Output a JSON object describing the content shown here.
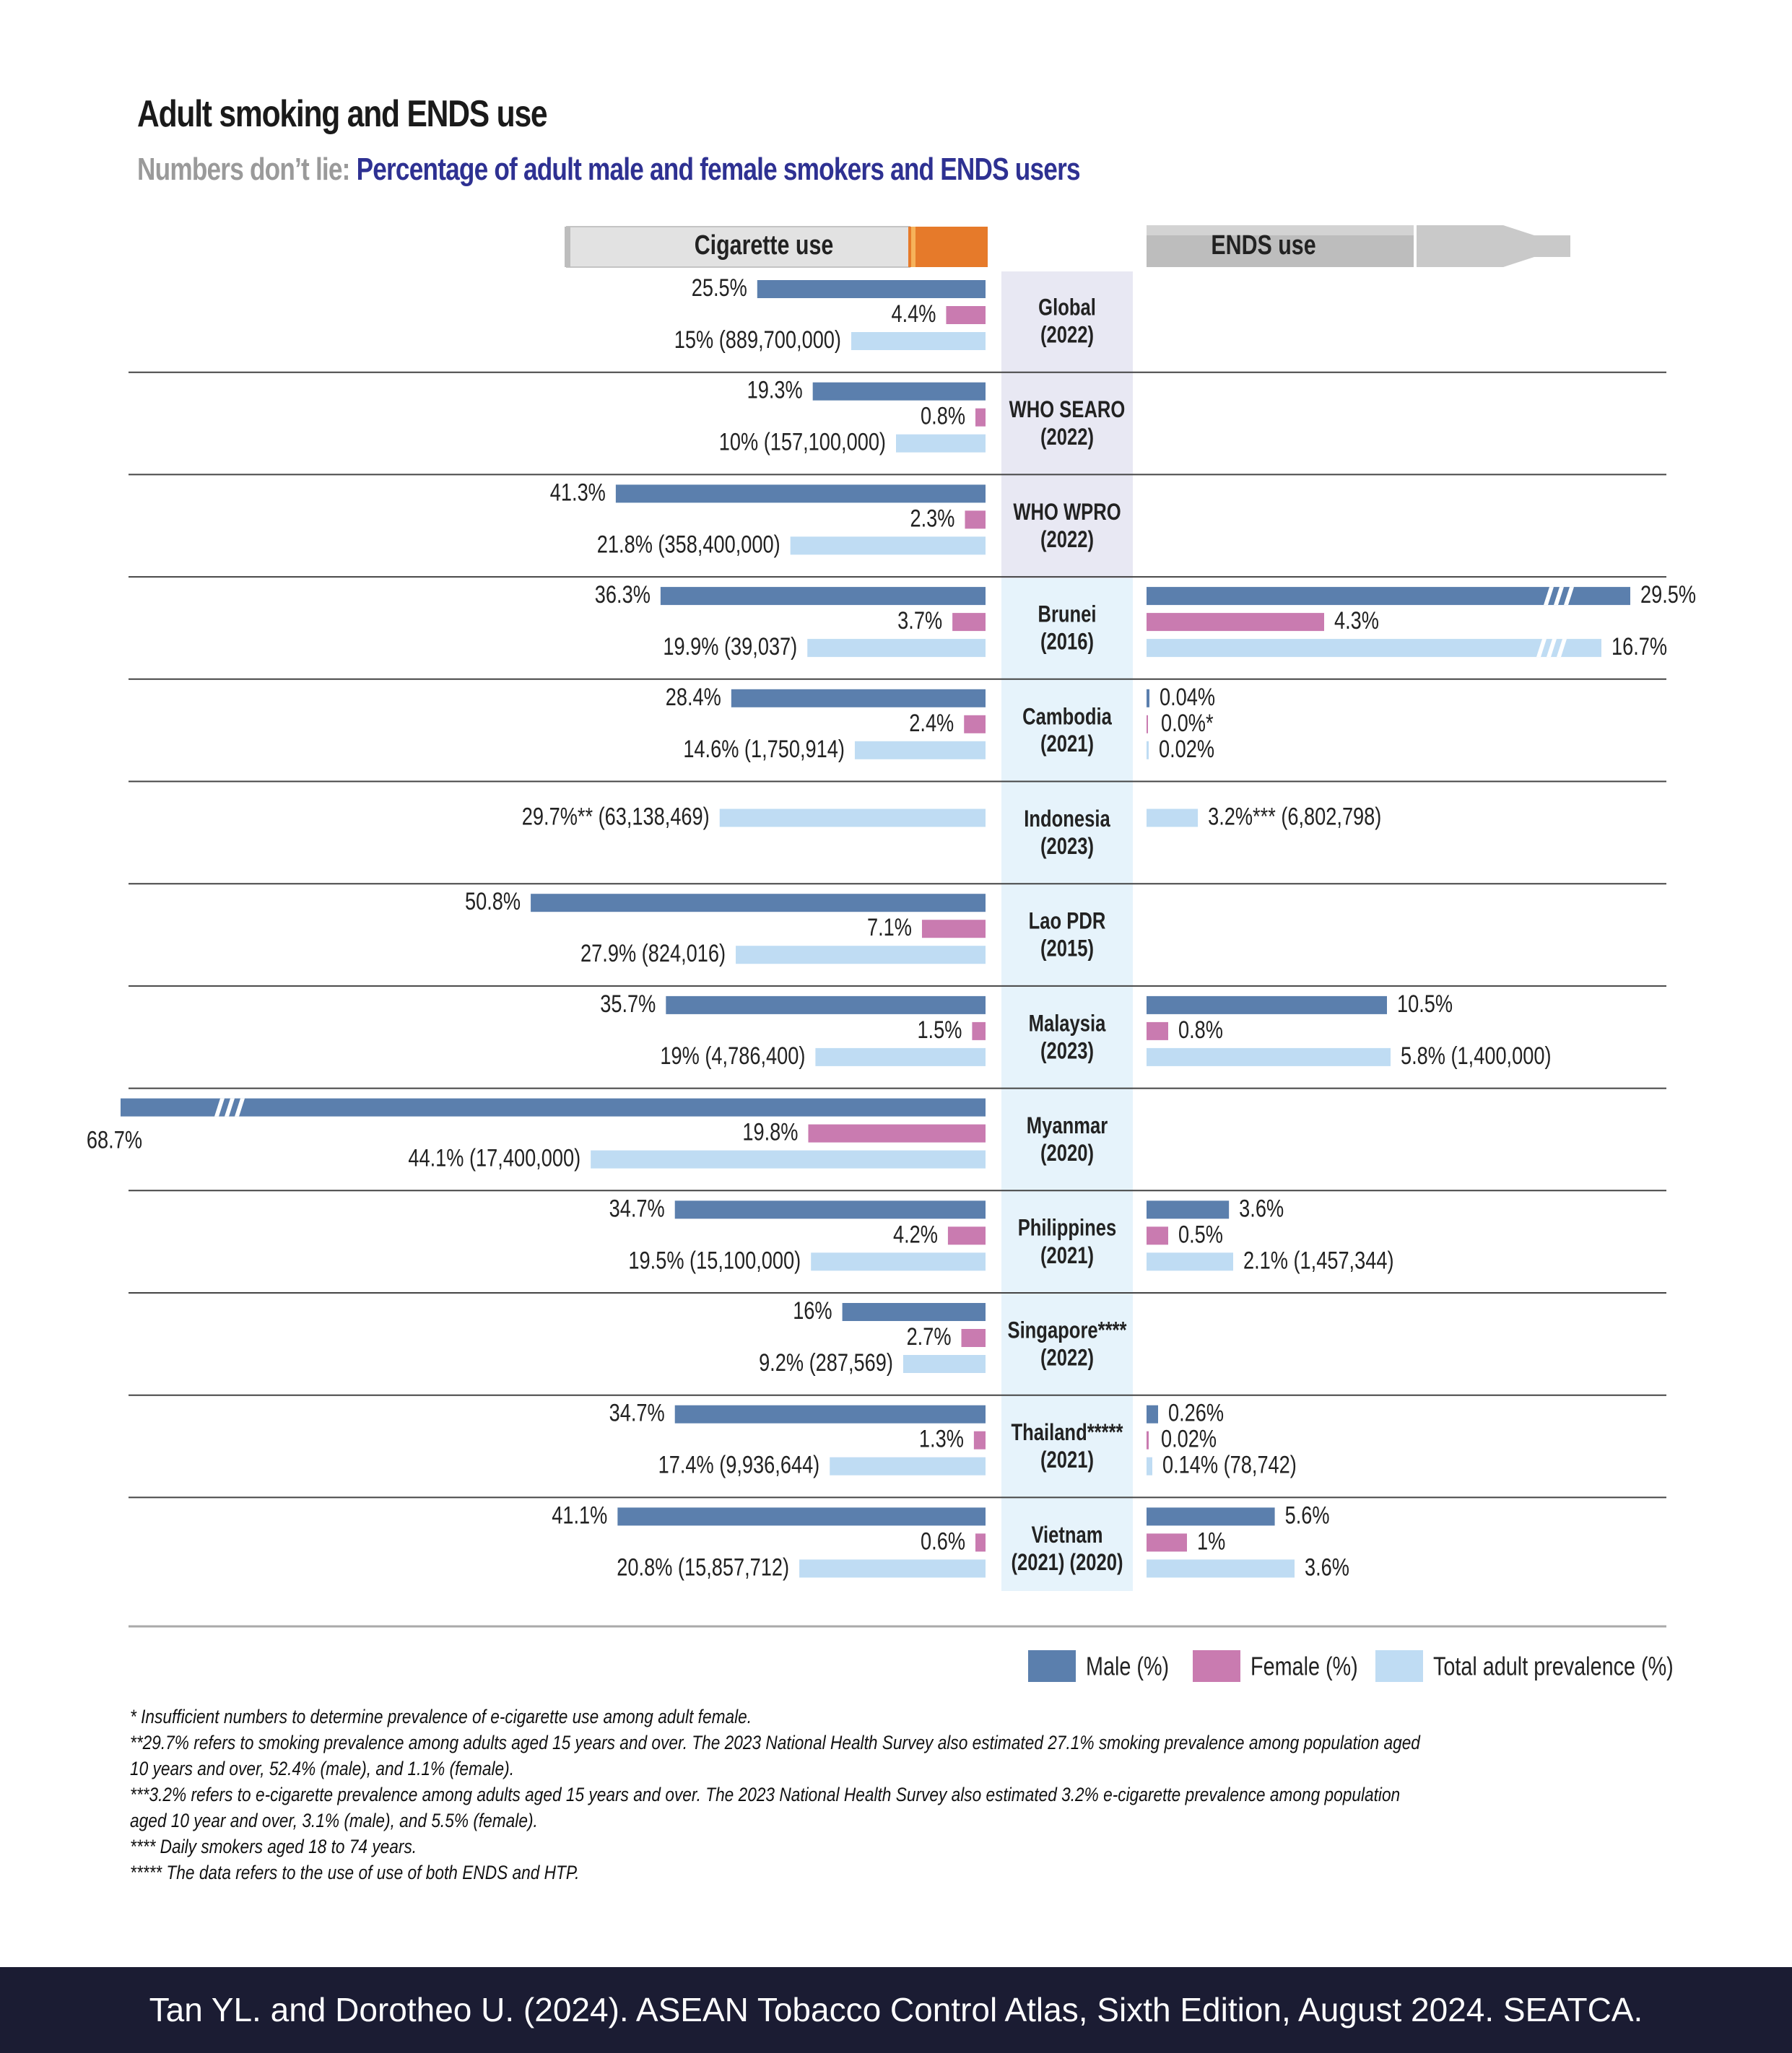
{
  "title": "Adult smoking and ENDS use",
  "subtitle": {
    "lead": "Numbers don’t lie:",
    "rest": " Percentage of adult male and female smokers and ENDS users"
  },
  "headers": {
    "cigarette": "Cigarette use",
    "ends": "ENDS use"
  },
  "legend": [
    {
      "label": "Male (%)",
      "color": "#5b7fad"
    },
    {
      "label": "Female (%)",
      "color": "#c97bb0"
    },
    {
      "label": "Total adult prevalence (%)",
      "color": "#bfdcf3"
    }
  ],
  "colors": {
    "male": "#5b7fad",
    "female": "#c97bb0",
    "total": "#bfdcf3",
    "region_band": "#e8e8f3",
    "country_band": "#e6f3fb"
  },
  "chart_data": {
    "type": "bar",
    "orientation": "horizontal-diverging",
    "left_panel": "Cigarette use",
    "right_panel": "ENDS use",
    "rows": [
      {
        "line1": "Global",
        "line2": "(2022)",
        "region": true,
        "cig": {
          "male": 25.5,
          "male_label": "25.5%",
          "female": 4.4,
          "female_label": "4.4%",
          "total": 15,
          "total_label": "15% (889,700,000)"
        },
        "ends": null
      },
      {
        "line1": "WHO SEARO",
        "line2": "(2022)",
        "region": true,
        "cig": {
          "male": 19.3,
          "male_label": "19.3%",
          "female": 0.8,
          "female_label": "0.8%",
          "total": 10,
          "total_label": "10% (157,100,000)"
        },
        "ends": null
      },
      {
        "line1": "WHO WPRO",
        "line2": "(2022)",
        "region": true,
        "cig": {
          "male": 41.3,
          "male_label": "41.3%",
          "female": 2.3,
          "female_label": "2.3%",
          "total": 21.8,
          "total_label": "21.8% (358,400,000)"
        },
        "ends": null
      },
      {
        "line1": "Brunei",
        "line2": "(2016)",
        "region": false,
        "cig": {
          "male": 36.3,
          "male_label": "36.3%",
          "female": 3.7,
          "female_label": "3.7%",
          "total": 19.9,
          "total_label": "19.9% (39,037)"
        },
        "ends": {
          "male": 29.5,
          "male_label": "29.5%",
          "male_break": true,
          "female": 4.3,
          "female_label": "4.3%",
          "total": 16.7,
          "total_label": "16.7%",
          "total_break": true
        }
      },
      {
        "line1": "Cambodia",
        "line2": "(2021)",
        "region": false,
        "cig": {
          "male": 28.4,
          "male_label": "28.4%",
          "female": 2.4,
          "female_label": "2.4%",
          "total": 14.6,
          "total_label": "14.6% (1,750,914)"
        },
        "ends": {
          "male": 0.04,
          "male_label": "0.04%",
          "female": 0,
          "female_label": "0.0%*",
          "total": 0.02,
          "total_label": "0.02%"
        }
      },
      {
        "line1": "Indonesia",
        "line2": "(2023)",
        "region": false,
        "cig": {
          "total": 29.7,
          "total_label": "29.7%** (63,138,469)"
        },
        "ends": {
          "total": 3.2,
          "total_label": "3.2%*** (6,802,798)"
        }
      },
      {
        "line1": "Lao PDR",
        "line2": "(2015)",
        "region": false,
        "cig": {
          "male": 50.8,
          "male_label": "50.8%",
          "female": 7.1,
          "female_label": "7.1%",
          "total": 27.9,
          "total_label": "27.9% (824,016)"
        },
        "ends": null
      },
      {
        "line1": "Malaysia",
        "line2": "(2023)",
        "region": false,
        "cig": {
          "male": 35.7,
          "male_label": "35.7%",
          "female": 1.5,
          "female_label": "1.5%",
          "total": 19,
          "total_label": "19% (4,786,400)"
        },
        "ends": {
          "male": 10.5,
          "male_label": "10.5%",
          "female": 0.8,
          "female_label": "0.8%",
          "total": 5.8,
          "total_label": "5.8% (1,400,000)"
        }
      },
      {
        "line1": "Myanmar",
        "line2": "(2020)",
        "region": false,
        "cig": {
          "male": 68.7,
          "male_label": "68.7%",
          "male_break": true,
          "female": 19.8,
          "female_label": "19.8%",
          "total": 44.1,
          "total_label": "44.1% (17,400,000)"
        },
        "ends": null
      },
      {
        "line1": "Philippines",
        "line2": "(2021)",
        "region": false,
        "cig": {
          "male": 34.7,
          "male_label": "34.7%",
          "female": 4.2,
          "female_label": "4.2%",
          "total": 19.5,
          "total_label": "19.5% (15,100,000)"
        },
        "ends": {
          "male": 3.6,
          "male_label": "3.6%",
          "female": 0.5,
          "female_label": "0.5%",
          "total": 2.1,
          "total_label": "2.1% (1,457,344)"
        }
      },
      {
        "line1": "Singapore****",
        "line2": "(2022)",
        "region": false,
        "cig": {
          "male": 16,
          "male_label": "16%",
          "female": 2.7,
          "female_label": "2.7%",
          "total": 9.2,
          "total_label": "9.2% (287,569)"
        },
        "ends": null
      },
      {
        "line1": "Thailand*****",
        "line2": "(2021)",
        "region": false,
        "cig": {
          "male": 34.7,
          "male_label": "34.7%",
          "female": 1.3,
          "female_label": "1.3%",
          "total": 17.4,
          "total_label": "17.4% (9,936,644)"
        },
        "ends": {
          "male": 0.26,
          "male_label": "0.26%",
          "female": 0.02,
          "female_label": "0.02%",
          "total": 0.14,
          "total_label": "0.14% (78,742)"
        }
      },
      {
        "line1": "Vietnam",
        "line2": "(2021)   (2020)",
        "region": false,
        "cig": {
          "male": 41.1,
          "male_label": "41.1%",
          "female": 0.6,
          "female_label": "0.6%",
          "total": 20.8,
          "total_label": "20.8% (15,857,712)"
        },
        "ends": {
          "male": 5.6,
          "male_label": "5.6%",
          "female": 1,
          "female_label": "1%",
          "total": 3.6,
          "total_label": "3.6%"
        }
      }
    ]
  },
  "footnotes": [
    "* Insufficient numbers to determine prevalence of e-cigarette use among adult female.",
    "**29.7% refers to smoking prevalence among adults aged 15 years and over. The 2023 National Health Survey also estimated 27.1% smoking prevalence among population aged 10 years and over, 52.4% (male), and 1.1% (female).",
    "***3.2% refers to e-cigarette prevalence among adults aged 15 years and over. The 2023 National Health Survey also estimated 3.2% e-cigarette prevalence among population aged 10 year and over, 3.1% (male), and 5.5% (female).",
    "**** Daily smokers aged 18 to 74 years.",
    "***** The data refers to the use of use of both ENDS and HTP."
  ],
  "footer": "Tan YL. and Dorotheo U. (2024). ASEAN Tobacco Control Atlas, Sixth Edition, August 2024. SEATCA."
}
